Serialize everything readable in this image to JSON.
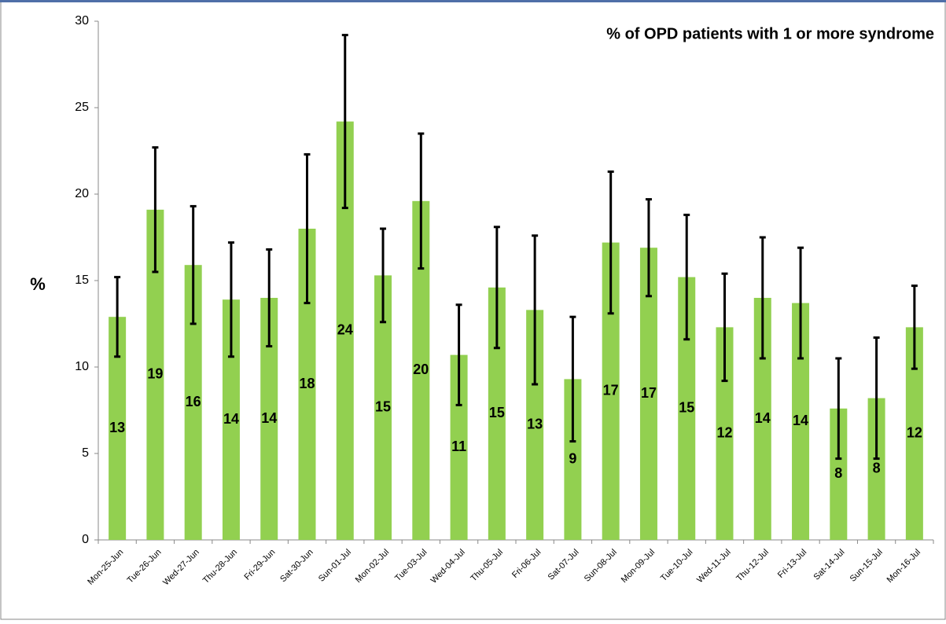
{
  "chart_data": {
    "type": "bar",
    "title": "% of OPD patients with 1 or more syndrome",
    "y_label": "%",
    "categories": [
      "Mon-25-Jun",
      "Tue-26-Jun",
      "Wed-27-Jun",
      "Thu-28-Jun",
      "Fri-29-Jun",
      "Sat-30-Jun",
      "Sun-01-Jul",
      "Mon-02-Jul",
      "Tue-03-Jul",
      "Wed-04-Jul",
      "Thu-05-Jul",
      "Fri-06-Jul",
      "Sat-07-Jul",
      "Sun-08-Jul",
      "Mon-09-Jul",
      "Tue-10-Jul",
      "Wed-11-Jul",
      "Thu-12-Jul",
      "Fri-13-Jul",
      "Sat-14-Jul",
      "Sun-15-Jul",
      "Mon-16-Jul"
    ],
    "values": [
      12.9,
      19.1,
      15.9,
      13.9,
      14.0,
      18.0,
      24.2,
      15.3,
      19.6,
      10.7,
      14.6,
      13.3,
      9.3,
      17.2,
      16.9,
      15.2,
      12.3,
      14.0,
      13.7,
      7.6,
      8.2,
      12.3
    ],
    "value_labels": [
      "13",
      "19",
      "16",
      "14",
      "14",
      "18",
      "24",
      "15",
      "20",
      "11",
      "15",
      "13",
      "9",
      "17",
      "17",
      "15",
      "12",
      "14",
      "14",
      "8",
      "8",
      "12"
    ],
    "errors": [
      2.3,
      3.6,
      3.4,
      3.3,
      2.8,
      4.3,
      5.0,
      2.7,
      3.9,
      2.9,
      3.5,
      4.3,
      3.6,
      4.1,
      2.8,
      3.6,
      3.1,
      3.5,
      3.2,
      2.9,
      3.5,
      2.4
    ],
    "color": "#92d050",
    "error_color": "#000000",
    "ylim": [
      0,
      30
    ],
    "yticks": [
      0,
      5,
      10,
      15,
      20,
      25,
      30
    ]
  }
}
